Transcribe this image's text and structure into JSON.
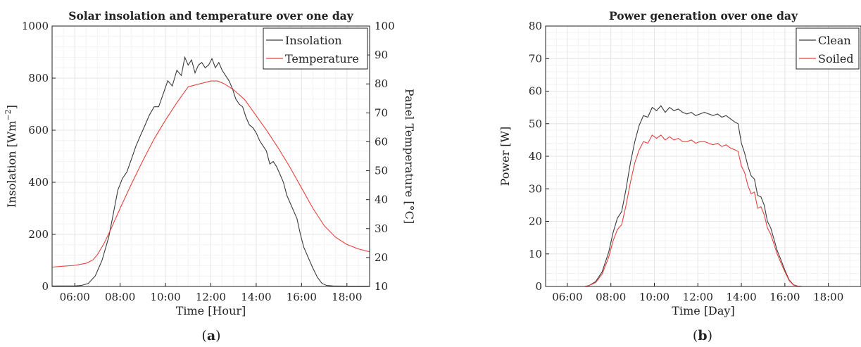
{
  "panels": [
    {
      "title": "Solar insolation and temperature over one day",
      "caption_open": "(",
      "caption_letter": "a",
      "caption_close": ")",
      "xlabel": "Time [Hour]",
      "ylabel_left": "Insolation [Wm−2]",
      "ylabel_right": "Panel Temperature [°C]"
    },
    {
      "title": "Power generation over one day",
      "caption_open": "(",
      "caption_letter": "b",
      "caption_close": ")",
      "xlabel": "Time [Day]",
      "ylabel_left": "Power [W]"
    }
  ],
  "chart_data": [
    {
      "type": "line",
      "title": "Solar insolation and temperature over one day",
      "xlabel": "Time [Hour]",
      "ylabel": "Insolation [Wm−2]",
      "ylabel_right": "Panel Temperature [°C]",
      "xlim": [
        5.0,
        19.0
      ],
      "ylim": [
        0,
        1000
      ],
      "ylim_right": [
        10,
        100
      ],
      "xticks": [
        6,
        8,
        10,
        12,
        14,
        16,
        18
      ],
      "xtick_labels": [
        "06:00",
        "08:00",
        "10:00",
        "12:00",
        "14:00",
        "16:00",
        "18:00"
      ],
      "yticks": [
        0,
        200,
        400,
        600,
        800,
        1000
      ],
      "yticks_right": [
        10,
        20,
        30,
        40,
        50,
        60,
        70,
        80,
        90,
        100
      ],
      "grid": true,
      "legend_position": "top-right",
      "series": [
        {
          "name": "Insolation",
          "axis": "left",
          "color": "#3a3a3a",
          "x": [
            5.0,
            6.0,
            6.3,
            6.6,
            6.9,
            7.2,
            7.5,
            7.7,
            7.9,
            8.1,
            8.3,
            8.5,
            8.7,
            8.9,
            9.1,
            9.3,
            9.5,
            9.7,
            9.9,
            10.1,
            10.3,
            10.5,
            10.7,
            10.85,
            11.0,
            11.15,
            11.3,
            11.45,
            11.6,
            11.75,
            11.9,
            12.05,
            12.2,
            12.35,
            12.5,
            12.65,
            12.8,
            12.95,
            13.1,
            13.25,
            13.4,
            13.55,
            13.7,
            13.85,
            14.0,
            14.15,
            14.3,
            14.45,
            14.6,
            14.75,
            14.9,
            15.05,
            15.2,
            15.35,
            15.5,
            15.65,
            15.8,
            15.95,
            16.1,
            16.3,
            16.5,
            16.7,
            16.9,
            17.1,
            17.4,
            18.0,
            19.0
          ],
          "values": [
            2,
            2,
            4,
            12,
            40,
            100,
            190,
            280,
            370,
            415,
            440,
            490,
            540,
            580,
            620,
            660,
            690,
            690,
            740,
            790,
            770,
            830,
            810,
            880,
            850,
            870,
            820,
            850,
            860,
            840,
            850,
            875,
            840,
            860,
            830,
            810,
            790,
            760,
            720,
            700,
            690,
            650,
            620,
            610,
            590,
            560,
            540,
            520,
            470,
            480,
            460,
            430,
            400,
            350,
            320,
            290,
            260,
            200,
            150,
            110,
            70,
            35,
            12,
            4,
            2,
            1,
            1
          ]
        },
        {
          "name": "Temperature",
          "axis": "right",
          "color": "#e8413f",
          "x": [
            5.0,
            5.5,
            6.0,
            6.5,
            6.8,
            7.0,
            7.3,
            7.6,
            8.0,
            8.5,
            9.0,
            9.5,
            10.0,
            10.5,
            11.0,
            11.5,
            12.0,
            12.3,
            12.6,
            13.0,
            13.5,
            14.0,
            14.5,
            15.0,
            15.5,
            16.0,
            16.5,
            17.0,
            17.5,
            18.0,
            18.5,
            19.0
          ],
          "values": [
            16.7,
            17.0,
            17.3,
            18.0,
            19.2,
            21.0,
            25.0,
            30.0,
            37.0,
            45.5,
            53.5,
            61.0,
            67.5,
            73.5,
            79.0,
            80.0,
            81.0,
            81.0,
            80.0,
            78.0,
            74.5,
            69.0,
            63.5,
            57.5,
            51.0,
            44.0,
            37.0,
            31.0,
            27.0,
            24.5,
            23.0,
            22.0
          ]
        }
      ]
    },
    {
      "type": "line",
      "title": "Power generation over one day",
      "xlabel": "Time [Day]",
      "ylabel": "Power [W]",
      "xlim": [
        5.0,
        19.5
      ],
      "ylim": [
        0,
        80
      ],
      "xticks": [
        6,
        8,
        10,
        12,
        14,
        16,
        18
      ],
      "xtick_labels": [
        "06:00",
        "08:00",
        "10:00",
        "12:00",
        "14:00",
        "16:00",
        "18:00"
      ],
      "yticks": [
        0,
        10,
        20,
        30,
        40,
        50,
        60,
        70,
        80
      ],
      "grid": true,
      "legend_position": "top-right",
      "series": [
        {
          "name": "Clean",
          "color": "#3a3a3a",
          "x": [
            5.0,
            6.8,
            7.0,
            7.3,
            7.6,
            7.9,
            8.1,
            8.3,
            8.5,
            8.7,
            8.9,
            9.1,
            9.3,
            9.5,
            9.7,
            9.9,
            10.1,
            10.3,
            10.5,
            10.7,
            10.9,
            11.1,
            11.3,
            11.5,
            11.7,
            11.9,
            12.1,
            12.3,
            12.5,
            12.7,
            12.9,
            13.1,
            13.3,
            13.5,
            13.7,
            13.85,
            14.0,
            14.15,
            14.3,
            14.45,
            14.6,
            14.75,
            14.9,
            15.05,
            15.2,
            15.35,
            15.5,
            15.65,
            15.8,
            16.0,
            16.2,
            16.4,
            16.6,
            16.8,
            17.0,
            19.5
          ],
          "values": [
            0,
            0,
            0.3,
            1.5,
            4.5,
            10.5,
            16.5,
            21.0,
            23.0,
            30.0,
            38.0,
            44.5,
            49.5,
            52.5,
            52.0,
            55.0,
            54.0,
            55.5,
            53.5,
            55.0,
            54.0,
            54.5,
            53.5,
            53.0,
            53.5,
            52.5,
            53.0,
            53.5,
            53.0,
            52.5,
            53.0,
            52.0,
            52.5,
            51.5,
            50.5,
            50.0,
            44.0,
            41.0,
            37.0,
            34.0,
            33.0,
            28.0,
            27.5,
            25.0,
            20.0,
            18.0,
            14.5,
            11.0,
            8.5,
            5.0,
            2.0,
            0.5,
            0.1,
            0,
            0,
            0
          ]
        },
        {
          "name": "Soiled",
          "color": "#e8413f",
          "x": [
            5.0,
            6.8,
            7.0,
            7.3,
            7.6,
            7.9,
            8.1,
            8.3,
            8.5,
            8.7,
            8.9,
            9.1,
            9.3,
            9.5,
            9.7,
            9.9,
            10.1,
            10.3,
            10.5,
            10.7,
            10.9,
            11.1,
            11.3,
            11.5,
            11.7,
            11.9,
            12.1,
            12.3,
            12.5,
            12.7,
            12.9,
            13.1,
            13.3,
            13.5,
            13.7,
            13.85,
            14.0,
            14.15,
            14.3,
            14.45,
            14.6,
            14.75,
            14.9,
            15.05,
            15.2,
            15.35,
            15.5,
            15.65,
            15.8,
            16.0,
            16.2,
            16.4,
            16.6,
            16.8,
            17.0,
            19.5
          ],
          "values": [
            0,
            0,
            0.3,
            1.2,
            3.8,
            9.0,
            14.0,
            17.5,
            19.0,
            25.0,
            32.0,
            38.0,
            42.0,
            44.5,
            44.0,
            46.5,
            45.5,
            46.5,
            45.0,
            46.0,
            45.0,
            45.5,
            44.5,
            44.5,
            45.0,
            44.0,
            44.5,
            44.5,
            44.0,
            43.5,
            44.0,
            43.0,
            43.5,
            42.5,
            42.0,
            41.5,
            37.0,
            35.0,
            31.0,
            28.5,
            29.0,
            24.0,
            24.5,
            22.0,
            18.0,
            16.0,
            13.0,
            10.0,
            7.5,
            4.5,
            1.8,
            0.4,
            0.1,
            0,
            0,
            0
          ]
        }
      ]
    }
  ]
}
